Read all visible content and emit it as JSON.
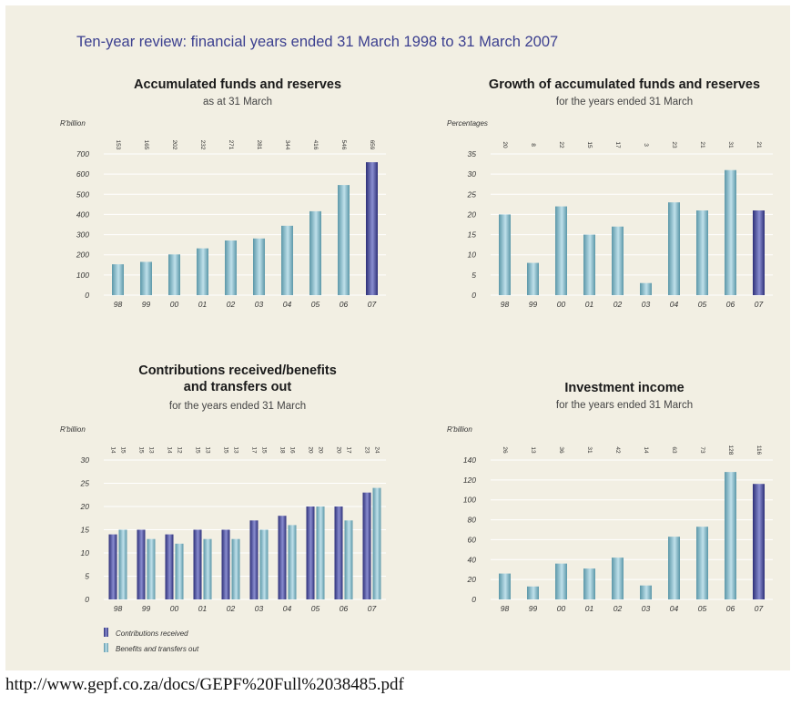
{
  "page_title": "Ten-year review: financial years ended 31 March 1998 to 31 March 2007",
  "source_url": "http://www.gepf.co.za/docs/GEPF%20Full%2038485.pdf",
  "colors": {
    "background": "#f2efe3",
    "title": "#3b3f8f",
    "bar_light": "#6aa8b8",
    "bar_dark": "#3d3f8c",
    "grid": "#ffffff"
  },
  "chart_data": [
    {
      "type": "bar",
      "title": "Accumulated funds and reserves",
      "subtitle": "as at 31 March",
      "ylabel": "R'billion",
      "categories": [
        "98",
        "99",
        "00",
        "01",
        "02",
        "03",
        "04",
        "05",
        "06",
        "07"
      ],
      "ylim": [
        0,
        700
      ],
      "yticks": [
        0,
        100,
        200,
        300,
        400,
        500,
        600,
        700
      ],
      "series": [
        {
          "values": [
            153,
            165,
            202,
            232,
            271,
            281,
            344,
            416,
            546,
            659
          ]
        }
      ],
      "data_labels": [
        "153",
        "165",
        "202",
        "232",
        "271",
        "281",
        "344",
        "416",
        "546",
        "659"
      ],
      "highlight_last": true,
      "grid": true
    },
    {
      "type": "bar",
      "title": "Growth of accumulated funds and reserves",
      "subtitle": "for the years ended 31 March",
      "ylabel": "Percentages",
      "categories": [
        "98",
        "99",
        "00",
        "01",
        "02",
        "03",
        "04",
        "05",
        "06",
        "07"
      ],
      "ylim": [
        0,
        35
      ],
      "yticks": [
        0,
        5,
        10,
        15,
        20,
        25,
        30,
        35
      ],
      "series": [
        {
          "values": [
            20,
            8,
            22,
            15,
            17,
            3,
            23,
            21,
            31,
            21
          ]
        }
      ],
      "data_labels": [
        "20",
        "8",
        "22",
        "15",
        "17",
        "3",
        "23",
        "21",
        "31",
        "21"
      ],
      "highlight_last": true,
      "grid": true
    },
    {
      "type": "bar",
      "title": "Contributions received/benefits",
      "title_line2": "and transfers out",
      "subtitle": "for the years ended 31 March",
      "ylabel": "R'billion",
      "categories": [
        "98",
        "99",
        "00",
        "01",
        "02",
        "03",
        "04",
        "05",
        "06",
        "07"
      ],
      "ylim": [
        0,
        30
      ],
      "yticks": [
        0,
        5,
        10,
        15,
        20,
        25,
        30
      ],
      "series": [
        {
          "name": "Contributions received",
          "values": [
            14,
            15,
            14,
            15,
            15,
            17,
            18,
            20,
            20,
            23
          ]
        },
        {
          "name": "Benefits and transfers out",
          "values": [
            15,
            13,
            12,
            13,
            13,
            15,
            16,
            20,
            17,
            24
          ]
        }
      ],
      "data_labels": [
        [
          "14",
          "15",
          "14",
          "15",
          "15",
          "17",
          "18",
          "20",
          "20",
          "23"
        ],
        [
          "15",
          "13",
          "12",
          "13",
          "13",
          "15",
          "16",
          "20",
          "17",
          "24"
        ]
      ],
      "legend_position": "bottom-left",
      "grid": true
    },
    {
      "type": "bar",
      "title": "Investment income",
      "subtitle": "for the years ended 31 March",
      "ylabel": "R'billion",
      "categories": [
        "98",
        "99",
        "00",
        "01",
        "02",
        "03",
        "04",
        "05",
        "06",
        "07"
      ],
      "ylim": [
        0,
        140
      ],
      "yticks": [
        0,
        20,
        40,
        60,
        80,
        100,
        120,
        140
      ],
      "series": [
        {
          "values": [
            26,
            13,
            36,
            31,
            42,
            14,
            63,
            73,
            128,
            116
          ]
        }
      ],
      "data_labels": [
        "26",
        "13",
        "36",
        "31",
        "42",
        "14",
        "63",
        "73",
        "128",
        "116"
      ],
      "highlight_last": true,
      "grid": true
    }
  ]
}
